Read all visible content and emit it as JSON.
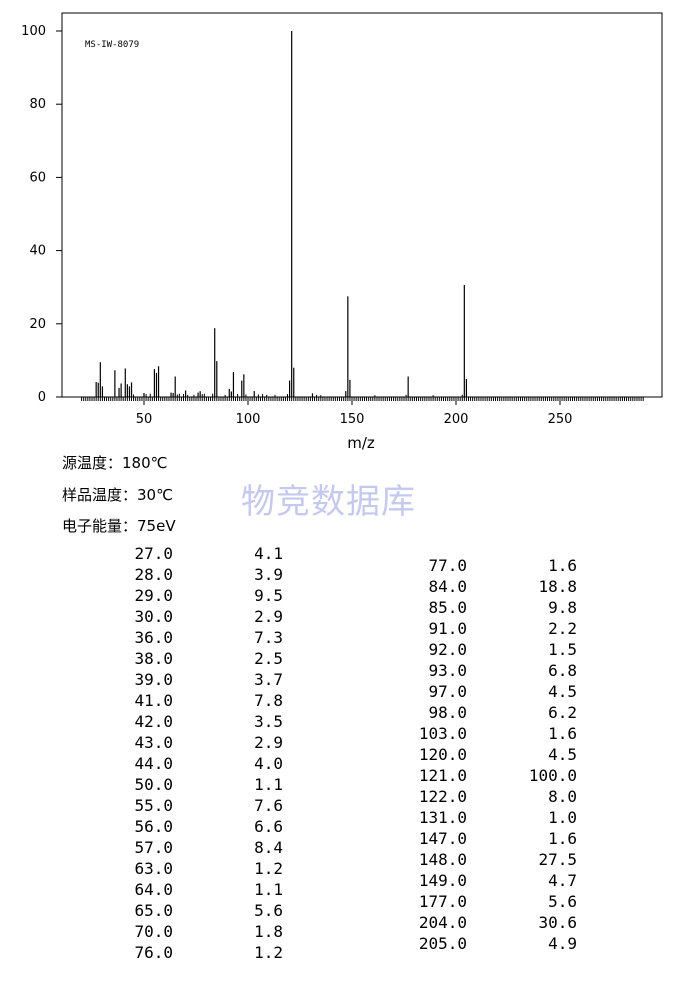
{
  "chart_data": {
    "type": "bar",
    "spectrum_id": "MS-IW-8079",
    "xlabel": "m/z",
    "ylabel": "",
    "xlim": [
      20,
      292
    ],
    "ylim": [
      0,
      100
    ],
    "x_ticks": [
      50,
      100,
      150,
      200,
      250
    ],
    "y_ticks": [
      0,
      20,
      40,
      60,
      80,
      100
    ],
    "peaks": [
      {
        "mz": 27.0,
        "intensity": 4.1
      },
      {
        "mz": 28.0,
        "intensity": 3.9
      },
      {
        "mz": 29.0,
        "intensity": 9.5
      },
      {
        "mz": 30.0,
        "intensity": 2.9
      },
      {
        "mz": 36.0,
        "intensity": 7.3
      },
      {
        "mz": 38.0,
        "intensity": 2.5
      },
      {
        "mz": 39.0,
        "intensity": 3.7
      },
      {
        "mz": 41.0,
        "intensity": 7.8
      },
      {
        "mz": 42.0,
        "intensity": 3.5
      },
      {
        "mz": 43.0,
        "intensity": 2.9
      },
      {
        "mz": 44.0,
        "intensity": 4.0
      },
      {
        "mz": 50.0,
        "intensity": 1.1
      },
      {
        "mz": 55.0,
        "intensity": 7.6
      },
      {
        "mz": 56.0,
        "intensity": 6.6
      },
      {
        "mz": 57.0,
        "intensity": 8.4
      },
      {
        "mz": 63.0,
        "intensity": 1.2
      },
      {
        "mz": 64.0,
        "intensity": 1.1
      },
      {
        "mz": 65.0,
        "intensity": 5.6
      },
      {
        "mz": 70.0,
        "intensity": 1.8
      },
      {
        "mz": 76.0,
        "intensity": 1.2
      },
      {
        "mz": 77.0,
        "intensity": 1.6
      },
      {
        "mz": 84.0,
        "intensity": 18.8
      },
      {
        "mz": 85.0,
        "intensity": 9.8
      },
      {
        "mz": 91.0,
        "intensity": 2.2
      },
      {
        "mz": 92.0,
        "intensity": 1.5
      },
      {
        "mz": 93.0,
        "intensity": 6.8
      },
      {
        "mz": 97.0,
        "intensity": 4.5
      },
      {
        "mz": 98.0,
        "intensity": 6.2
      },
      {
        "mz": 103.0,
        "intensity": 1.6
      },
      {
        "mz": 120.0,
        "intensity": 4.5
      },
      {
        "mz": 121.0,
        "intensity": 100.0
      },
      {
        "mz": 122.0,
        "intensity": 8.0
      },
      {
        "mz": 131.0,
        "intensity": 1.0
      },
      {
        "mz": 147.0,
        "intensity": 1.6
      },
      {
        "mz": 148.0,
        "intensity": 27.5
      },
      {
        "mz": 149.0,
        "intensity": 4.7
      },
      {
        "mz": 177.0,
        "intensity": 5.6
      },
      {
        "mz": 204.0,
        "intensity": 30.6
      },
      {
        "mz": 205.0,
        "intensity": 4.9
      }
    ],
    "minor_peaks": [
      {
        "mz": 45,
        "intensity": 0.7
      },
      {
        "mz": 51,
        "intensity": 0.8
      },
      {
        "mz": 53,
        "intensity": 0.9
      },
      {
        "mz": 66,
        "intensity": 0.7
      },
      {
        "mz": 67,
        "intensity": 0.9
      },
      {
        "mz": 69,
        "intensity": 0.8
      },
      {
        "mz": 71,
        "intensity": 0.6
      },
      {
        "mz": 74,
        "intensity": 0.6
      },
      {
        "mz": 78,
        "intensity": 0.8
      },
      {
        "mz": 79,
        "intensity": 0.9
      },
      {
        "mz": 83,
        "intensity": 0.9
      },
      {
        "mz": 89,
        "intensity": 0.6
      },
      {
        "mz": 95,
        "intensity": 0.8
      },
      {
        "mz": 99,
        "intensity": 0.7
      },
      {
        "mz": 105,
        "intensity": 0.7
      },
      {
        "mz": 107,
        "intensity": 0.8
      },
      {
        "mz": 109,
        "intensity": 0.6
      },
      {
        "mz": 113,
        "intensity": 0.6
      },
      {
        "mz": 119,
        "intensity": 0.8
      },
      {
        "mz": 133,
        "intensity": 0.6
      },
      {
        "mz": 135,
        "intensity": 0.5
      },
      {
        "mz": 161,
        "intensity": 0.5
      },
      {
        "mz": 176,
        "intensity": 0.6
      },
      {
        "mz": 189,
        "intensity": 0.5
      },
      {
        "mz": 203,
        "intensity": 0.6
      }
    ]
  },
  "conditions": {
    "source_temp": "源温度：180℃",
    "sample_temp": "样品温度：30℃",
    "electron_energy": "电子能量：75eV"
  },
  "watermark": "物竞数据库",
  "peak_table": {
    "left": [
      [
        "27.0",
        "4.1"
      ],
      [
        "28.0",
        "3.9"
      ],
      [
        "29.0",
        "9.5"
      ],
      [
        "30.0",
        "2.9"
      ],
      [
        "36.0",
        "7.3"
      ],
      [
        "38.0",
        "2.5"
      ],
      [
        "39.0",
        "3.7"
      ],
      [
        "41.0",
        "7.8"
      ],
      [
        "42.0",
        "3.5"
      ],
      [
        "43.0",
        "2.9"
      ],
      [
        "44.0",
        "4.0"
      ],
      [
        "50.0",
        "1.1"
      ],
      [
        "55.0",
        "7.6"
      ],
      [
        "56.0",
        "6.6"
      ],
      [
        "57.0",
        "8.4"
      ],
      [
        "63.0",
        "1.2"
      ],
      [
        "64.0",
        "1.1"
      ],
      [
        "65.0",
        "5.6"
      ],
      [
        "70.0",
        "1.8"
      ],
      [
        "76.0",
        "1.2"
      ]
    ],
    "right": [
      [
        "77.0",
        "1.6"
      ],
      [
        "84.0",
        "18.8"
      ],
      [
        "85.0",
        "9.8"
      ],
      [
        "91.0",
        "2.2"
      ],
      [
        "92.0",
        "1.5"
      ],
      [
        "93.0",
        "6.8"
      ],
      [
        "97.0",
        "4.5"
      ],
      [
        "98.0",
        "6.2"
      ],
      [
        "103.0",
        "1.6"
      ],
      [
        "120.0",
        "4.5"
      ],
      [
        "121.0",
        "100.0"
      ],
      [
        "122.0",
        "8.0"
      ],
      [
        "131.0",
        "1.0"
      ],
      [
        "147.0",
        "1.6"
      ],
      [
        "148.0",
        "27.5"
      ],
      [
        "149.0",
        "4.7"
      ],
      [
        "177.0",
        "5.6"
      ],
      [
        "204.0",
        "30.6"
      ],
      [
        "205.0",
        "4.9"
      ]
    ]
  }
}
